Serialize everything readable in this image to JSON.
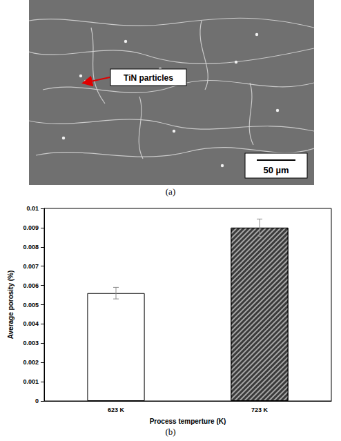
{
  "micrograph": {
    "caption": "(a)",
    "annotation": "TiN particles",
    "scale_bar": "50 µm"
  },
  "chart_data": {
    "type": "bar",
    "caption": "(b)",
    "x_label": "Process temperture (K)",
    "y_label": "Average porosity (%)",
    "categories": [
      "623 K",
      "723 K"
    ],
    "values": [
      0.0056,
      0.009
    ],
    "error": [
      0.0003,
      0.00045
    ],
    "colors": [
      "#ffffff",
      "#3a3a3a"
    ],
    "ylim": [
      0,
      0.01
    ],
    "yticks": [
      0,
      0.001,
      0.002,
      0.003,
      0.004,
      0.005,
      0.006,
      0.007,
      0.008,
      0.009,
      0.01
    ],
    "grid": false
  }
}
